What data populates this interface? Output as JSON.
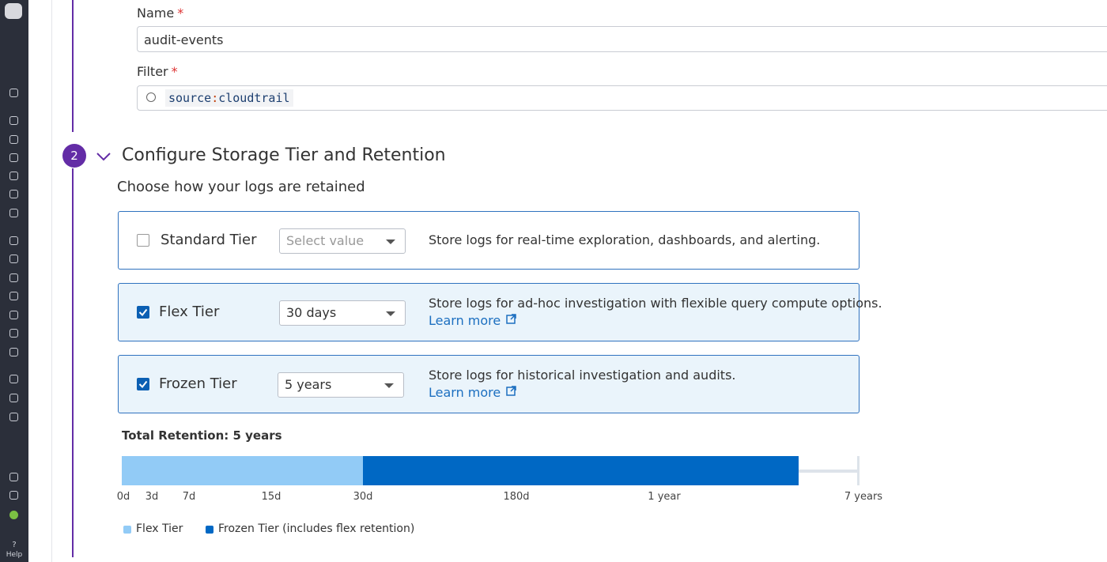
{
  "sidebar": {
    "help": "Help"
  },
  "form": {
    "name": {
      "label": "Name",
      "required": "*",
      "value": "audit-events"
    },
    "filter": {
      "label": "Filter",
      "required": "*",
      "key": "source",
      "separator": ":",
      "value": "cloudtrail"
    }
  },
  "section": {
    "step": "2",
    "title": "Configure Storage Tier and Retention",
    "subtitle": "Choose how your logs are retained",
    "tiers": [
      {
        "name": "Standard Tier",
        "checked": false,
        "select": "Select value",
        "placeholder": true,
        "description": "Store logs for real-time exploration, dashboards, and alerting."
      },
      {
        "name": "Flex Tier",
        "checked": true,
        "select": "30 days",
        "placeholder": false,
        "description": "Store logs for ad-hoc investigation with flexible query compute options.",
        "link": "Learn more"
      },
      {
        "name": "Frozen Tier",
        "checked": true,
        "select": "5 years",
        "placeholder": false,
        "description": "Store logs for historical investigation and audits.",
        "link": "Learn more"
      }
    ],
    "retention": {
      "title": "Total Retention: 5 years",
      "ticks": [
        "0d",
        "3d",
        "7d",
        "15d",
        "30d",
        "180d",
        "1 year",
        "7 years"
      ],
      "legend": [
        {
          "label": "Flex Tier",
          "color": "#92cbf6"
        },
        {
          "label": "Frozen Tier (includes flex retention)",
          "color": "#0068c4"
        }
      ]
    }
  }
}
